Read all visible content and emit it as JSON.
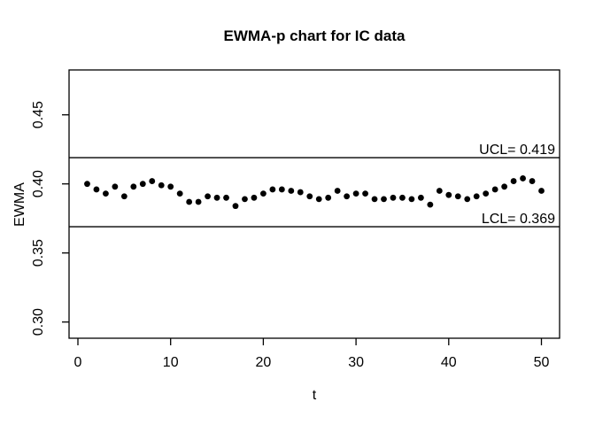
{
  "colors": {
    "foreground": "#000000",
    "background": "#ffffff"
  },
  "chart_data": {
    "type": "scatter",
    "title": "EWMA-p chart for IC data",
    "xlabel": "t",
    "ylabel": "EWMA",
    "xlim": [
      -0.96,
      51.96
    ],
    "ylim": [
      0.288,
      0.4825
    ],
    "grid": "off",
    "x_ticks": [
      0,
      10,
      20,
      30,
      40,
      50
    ],
    "y_ticks": [
      {
        "value": 0.3,
        "label": "0.30"
      },
      {
        "value": 0.35,
        "label": "0.35"
      },
      {
        "value": 0.4,
        "label": "0.40"
      },
      {
        "value": 0.45,
        "label": "0.45"
      }
    ],
    "ucl": {
      "value": 0.419,
      "label": "UCL= 0.419"
    },
    "lcl": {
      "value": 0.369,
      "label": "LCL= 0.369"
    },
    "point_style": "filled-black-circle",
    "t": [
      1,
      2,
      3,
      4,
      5,
      6,
      7,
      8,
      9,
      10,
      11,
      12,
      13,
      14,
      15,
      16,
      17,
      18,
      19,
      20,
      21,
      22,
      23,
      24,
      25,
      26,
      27,
      28,
      29,
      30,
      31,
      32,
      33,
      34,
      35,
      36,
      37,
      38,
      39,
      40,
      41,
      42,
      43,
      44,
      45,
      46,
      47,
      48,
      49,
      50
    ],
    "ewma": [
      0.4,
      0.396,
      0.393,
      0.398,
      0.391,
      0.398,
      0.4,
      0.402,
      0.399,
      0.398,
      0.393,
      0.387,
      0.387,
      0.391,
      0.39,
      0.39,
      0.384,
      0.389,
      0.39,
      0.393,
      0.396,
      0.396,
      0.395,
      0.394,
      0.391,
      0.389,
      0.39,
      0.395,
      0.391,
      0.393,
      0.393,
      0.389,
      0.389,
      0.39,
      0.39,
      0.389,
      0.39,
      0.385,
      0.395,
      0.392,
      0.391,
      0.389,
      0.391,
      0.393,
      0.396,
      0.398,
      0.402,
      0.404,
      0.402,
      0.395
    ]
  }
}
